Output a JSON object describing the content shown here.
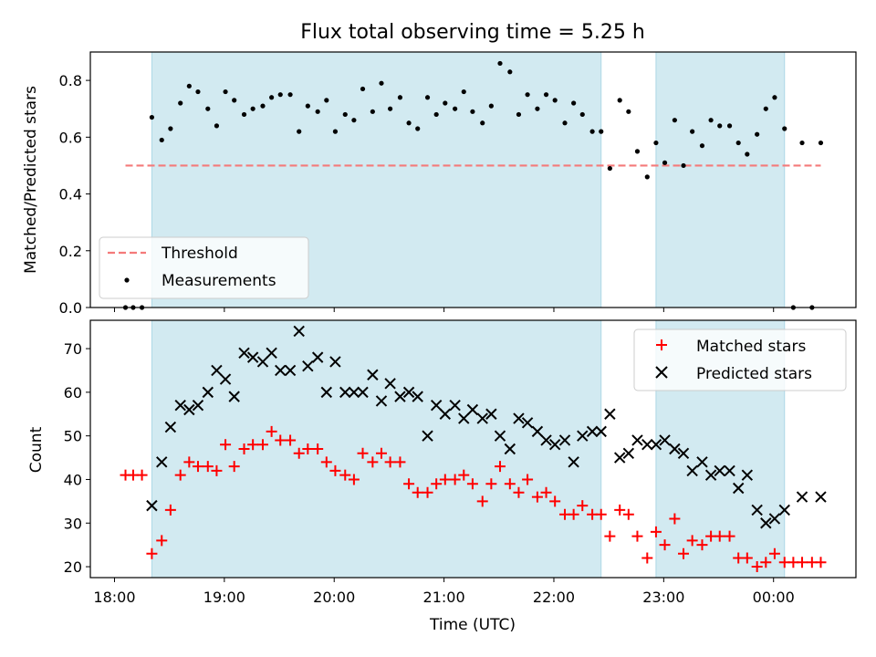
{
  "chart_data": {
    "title": "Flux total observing time = 5.25 h",
    "xlabel": "Time (UTC)",
    "x_unit": "hours since 18:00 UTC",
    "xlim": [
      -0.22,
      6.75
    ],
    "xticks": [
      0,
      1,
      2,
      3,
      4,
      5,
      6
    ],
    "xtick_labels": [
      "18:00",
      "19:00",
      "20:00",
      "21:00",
      "22:00",
      "23:00",
      "00:00"
    ],
    "shaded_intervals": [
      [
        0.34,
        4.43
      ],
      [
        4.93,
        6.1
      ]
    ],
    "colors": {
      "shade": "#add8e6",
      "threshold": "#f47a7a",
      "measurement": "#000000",
      "matched": "#ff0000",
      "predicted": "#000000"
    },
    "panels": [
      {
        "type": "scatter",
        "ylabel": "Matched/Predicted stars",
        "ylim": [
          0,
          0.9
        ],
        "yticks": [
          0.0,
          0.2,
          0.4,
          0.6,
          0.8
        ],
        "ytick_labels": [
          "0.0",
          "0.2",
          "0.4",
          "0.6",
          "0.8"
        ],
        "legend": {
          "position": "lower-left",
          "entries": [
            {
              "label": "Threshold",
              "marker": "dashed-line"
            },
            {
              "label": "Measurements",
              "marker": "dot"
            }
          ]
        },
        "threshold": {
          "y": 0.5,
          "x_start": 0.1,
          "x_end": 6.43
        },
        "series": [
          {
            "name": "Measurements",
            "x": [
              0.1,
              0.17,
              0.25,
              0.34,
              0.43,
              0.51,
              0.6,
              0.68,
              0.76,
              0.85,
              0.93,
              1.01,
              1.09,
              1.18,
              1.26,
              1.35,
              1.43,
              1.51,
              1.6,
              1.68,
              1.76,
              1.85,
              1.93,
              2.01,
              2.1,
              2.18,
              2.26,
              2.35,
              2.43,
              2.51,
              2.6,
              2.68,
              2.76,
              2.85,
              2.93,
              3.01,
              3.1,
              3.18,
              3.26,
              3.35,
              3.43,
              3.51,
              3.6,
              3.68,
              3.76,
              3.85,
              3.93,
              4.01,
              4.1,
              4.18,
              4.26,
              4.35,
              4.43,
              4.51,
              4.6,
              4.68,
              4.76,
              4.85,
              4.93,
              5.01,
              5.1,
              5.18,
              5.26,
              5.35,
              5.43,
              5.51,
              5.6,
              5.68,
              5.76,
              5.85,
              5.93,
              6.01,
              6.1,
              6.18,
              6.26,
              6.35,
              6.43
            ],
            "y": [
              0.0,
              0.0,
              0.0,
              0.67,
              0.59,
              0.63,
              0.72,
              0.78,
              0.76,
              0.7,
              0.64,
              0.76,
              0.73,
              0.68,
              0.7,
              0.71,
              0.74,
              0.75,
              0.75,
              0.62,
              0.71,
              0.69,
              0.73,
              0.62,
              0.68,
              0.66,
              0.77,
              0.69,
              0.79,
              0.7,
              0.74,
              0.65,
              0.63,
              0.74,
              0.68,
              0.72,
              0.7,
              0.76,
              0.69,
              0.65,
              0.71,
              0.86,
              0.83,
              0.68,
              0.75,
              0.7,
              0.75,
              0.73,
              0.65,
              0.72,
              0.68,
              0.62,
              0.62,
              0.49,
              0.73,
              0.69,
              0.55,
              0.46,
              0.58,
              0.51,
              0.66,
              0.5,
              0.62,
              0.57,
              0.66,
              0.64,
              0.64,
              0.58,
              0.54,
              0.61,
              0.7,
              0.74,
              0.63,
              0.0,
              0.58,
              0.0,
              0.58
            ]
          }
        ]
      },
      {
        "type": "scatter",
        "ylabel": "Count",
        "ylim": [
          17.5,
          76.5
        ],
        "yticks": [
          20,
          30,
          40,
          50,
          60,
          70
        ],
        "ytick_labels": [
          "20",
          "30",
          "40",
          "50",
          "60",
          "70"
        ],
        "legend": {
          "position": "top-right",
          "entries": [
            {
              "label": "Matched stars",
              "marker": "plus"
            },
            {
              "label": "Predicted stars",
              "marker": "x"
            }
          ]
        },
        "series": [
          {
            "name": "Matched stars",
            "x": [
              0.1,
              0.17,
              0.25,
              0.34,
              0.43,
              0.51,
              0.6,
              0.68,
              0.76,
              0.85,
              0.93,
              1.01,
              1.09,
              1.18,
              1.26,
              1.35,
              1.43,
              1.51,
              1.6,
              1.68,
              1.76,
              1.85,
              1.93,
              2.01,
              2.1,
              2.18,
              2.26,
              2.35,
              2.43,
              2.51,
              2.6,
              2.68,
              2.76,
              2.85,
              2.93,
              3.01,
              3.1,
              3.18,
              3.26,
              3.35,
              3.43,
              3.51,
              3.6,
              3.68,
              3.76,
              3.85,
              3.93,
              4.01,
              4.1,
              4.18,
              4.26,
              4.35,
              4.43,
              4.51,
              4.6,
              4.68,
              4.76,
              4.85,
              4.93,
              5.01,
              5.1,
              5.18,
              5.26,
              5.35,
              5.43,
              5.51,
              5.6,
              5.68,
              5.76,
              5.85,
              5.93,
              6.01,
              6.1,
              6.18,
              6.26,
              6.35,
              6.43
            ],
            "y": [
              41,
              41,
              41,
              23,
              26,
              33,
              41,
              44,
              43,
              43,
              42,
              48,
              43,
              47,
              48,
              48,
              51,
              49,
              49,
              46,
              47,
              47,
              44,
              42,
              41,
              40,
              46,
              44,
              46,
              44,
              44,
              39,
              37,
              37,
              39,
              40,
              40,
              41,
              39,
              35,
              39,
              43,
              39,
              37,
              40,
              36,
              37,
              35,
              32,
              32,
              34,
              32,
              32,
              27,
              33,
              32,
              27,
              22,
              28,
              25,
              31,
              23,
              26,
              25,
              27,
              27,
              27,
              22,
              22,
              20,
              21,
              23,
              21,
              21,
              21,
              21,
              21
            ]
          },
          {
            "name": "Predicted stars",
            "x": [
              0.34,
              0.43,
              0.51,
              0.6,
              0.68,
              0.76,
              0.85,
              0.93,
              1.01,
              1.09,
              1.18,
              1.26,
              1.35,
              1.43,
              1.51,
              1.6,
              1.68,
              1.76,
              1.85,
              1.93,
              2.01,
              2.1,
              2.18,
              2.26,
              2.35,
              2.43,
              2.51,
              2.6,
              2.68,
              2.76,
              2.85,
              2.93,
              3.01,
              3.1,
              3.18,
              3.26,
              3.35,
              3.43,
              3.51,
              3.6,
              3.68,
              3.76,
              3.85,
              3.93,
              4.01,
              4.1,
              4.18,
              4.26,
              4.35,
              4.43,
              4.51,
              4.6,
              4.68,
              4.76,
              4.85,
              4.93,
              5.01,
              5.1,
              5.18,
              5.26,
              5.35,
              5.43,
              5.51,
              5.6,
              5.68,
              5.76,
              5.85,
              5.93,
              6.01,
              6.1,
              6.26,
              6.43
            ],
            "y": [
              34,
              44,
              52,
              57,
              56,
              57,
              60,
              65,
              63,
              59,
              69,
              68,
              67,
              69,
              65,
              65,
              74,
              66,
              68,
              60,
              67,
              60,
              60,
              60,
              64,
              58,
              62,
              59,
              60,
              59,
              50,
              57,
              55,
              57,
              54,
              56,
              54,
              55,
              50,
              47,
              54,
              53,
              51,
              49,
              48,
              49,
              44,
              50,
              51,
              51,
              55,
              45,
              46,
              49,
              48,
              48,
              49,
              47,
              46,
              42,
              44,
              41,
              42,
              42,
              38,
              41,
              33,
              30,
              31,
              33,
              36,
              36
            ]
          }
        ]
      }
    ]
  }
}
